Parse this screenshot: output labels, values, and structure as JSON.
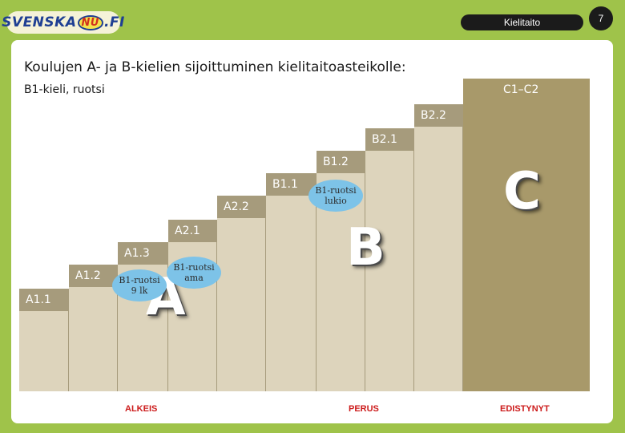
{
  "header": {
    "logo_text_left": "SVENSKA",
    "logo_text_nu": "NU",
    "logo_text_right": ".FI",
    "tag": "Kielitaito",
    "page_number": "7"
  },
  "title": "Koulujen A- ja B-kielien sijoittuminen kielitaitoasteikolle:",
  "subtitle": "B1-kieli, ruotsi",
  "steps": {
    "A1_1": "A1.1",
    "A1_2": "A1.2",
    "A1_3": "A1.3",
    "A2_1": "A2.1",
    "A2_2": "A2.2",
    "B1_1": "B1.1",
    "B1_2": "B1.2",
    "B2_1": "B2.1",
    "B2_2": "B2.2",
    "C1_C2": "C1–C2"
  },
  "bubbles": {
    "b9": "B1-ruotsi\n9 lk",
    "bama": "B1-ruotsi\nama",
    "blukio": "B1-ruotsi\nlukio"
  },
  "big_letters": {
    "a": "A",
    "b": "B",
    "c": "C"
  },
  "levels": {
    "alkeis": "ALKEIS",
    "perus": "PERUS",
    "edistynyt": "EDISTYNYT"
  },
  "colors": {
    "background": "#9fc34a",
    "light_column": "#ddd4bc",
    "dark_column": "#a8996a",
    "step_bar": "#a69b7c",
    "bubble": "#7dc3e8",
    "level_text": "#cc1a1a"
  }
}
